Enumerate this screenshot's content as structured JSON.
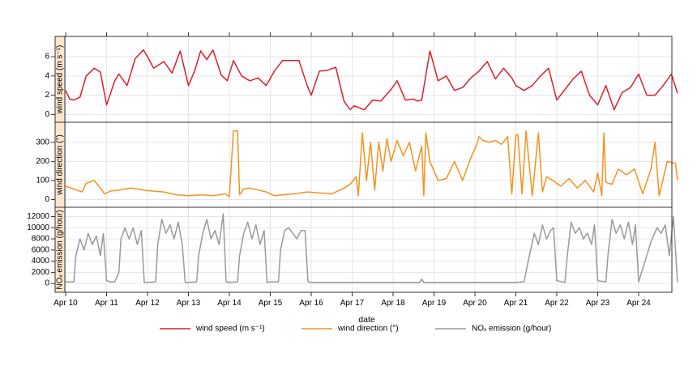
{
  "chart_data": {
    "type": "line",
    "xlabel": "date",
    "x_ticks": [
      "Apr 10",
      "Apr 11",
      "Apr 12",
      "Apr 13",
      "Apr 14",
      "Apr 15",
      "Apr 16",
      "Apr 17",
      "Apr 18",
      "Apr 19",
      "Apr 20",
      "Apr 21",
      "Apr 22",
      "Apr 23",
      "Apr 24"
    ],
    "x_range_days": [
      0,
      14.95
    ],
    "grid": true,
    "legend_position": "bottom",
    "panels": [
      {
        "strip_label": "wind speed (m s⁻¹)",
        "series": "wind speed",
        "color": "#dc1e2d",
        "ylim": [
          -0.3,
          7.6
        ],
        "yticks": [
          0,
          2,
          4,
          6
        ],
        "x": [
          0,
          0.1,
          0.2,
          0.35,
          0.5,
          0.7,
          0.85,
          1.0,
          1.2,
          1.3,
          1.5,
          1.7,
          1.9,
          2.0,
          2.15,
          2.4,
          2.6,
          2.8,
          3.0,
          3.15,
          3.3,
          3.45,
          3.6,
          3.8,
          3.95,
          4.1,
          4.3,
          4.5,
          4.7,
          4.9,
          5.1,
          5.3,
          5.5,
          5.7,
          5.9,
          6.0,
          6.2,
          6.4,
          6.6,
          6.8,
          6.95,
          7.05,
          7.3,
          7.5,
          7.7,
          7.95,
          8.1,
          8.3,
          8.5,
          8.6,
          8.7,
          8.9,
          9.1,
          9.3,
          9.5,
          9.7,
          9.9,
          10.1,
          10.3,
          10.5,
          10.7,
          10.9,
          11.0,
          11.2,
          11.4,
          11.6,
          11.8,
          12.0,
          12.2,
          12.4,
          12.6,
          12.8,
          13.0,
          13.2,
          13.4,
          13.6,
          13.8,
          14.0,
          14.2,
          14.4,
          14.6,
          14.8,
          14.95
        ],
        "values": [
          2.5,
          1.6,
          1.5,
          1.8,
          4.0,
          4.8,
          4.4,
          1.0,
          3.5,
          4.2,
          3.0,
          5.8,
          6.7,
          6.0,
          4.8,
          5.5,
          4.3,
          6.6,
          3.0,
          4.5,
          6.6,
          5.7,
          6.7,
          4.1,
          3.5,
          5.6,
          4.0,
          3.5,
          3.8,
          3.0,
          4.5,
          5.6,
          5.6,
          5.6,
          3.0,
          2.0,
          4.5,
          4.6,
          4.9,
          1.4,
          0.5,
          0.9,
          0.5,
          1.5,
          1.4,
          2.6,
          3.5,
          1.5,
          1.6,
          1.4,
          1.5,
          6.6,
          3.5,
          4.0,
          2.5,
          2.8,
          3.8,
          4.5,
          5.5,
          3.7,
          4.8,
          3.8,
          3.0,
          2.5,
          3.0,
          4.0,
          4.8,
          1.5,
          2.6,
          3.7,
          4.5,
          2.0,
          1.0,
          3.0,
          0.5,
          2.3,
          2.8,
          4.2,
          2.0,
          2.0,
          3.0,
          4.2,
          2.2
        ]
      },
      {
        "strip_label": "wind direction (°)",
        "series": "wind direction",
        "color": "#f5921e",
        "ylim": [
          -15,
          380
        ],
        "yticks": [
          0,
          100,
          200,
          300
        ],
        "x": [
          0,
          0.2,
          0.4,
          0.5,
          0.7,
          0.85,
          0.95,
          1.1,
          1.3,
          1.6,
          1.9,
          2.1,
          2.4,
          2.7,
          3.0,
          3.3,
          3.6,
          3.9,
          4.0,
          4.1,
          4.2,
          4.25,
          4.35,
          4.5,
          4.7,
          4.9,
          5.1,
          5.3,
          5.6,
          5.9,
          6.2,
          6.5,
          6.8,
          6.95,
          7.1,
          7.15,
          7.25,
          7.35,
          7.45,
          7.55,
          7.65,
          7.75,
          7.85,
          7.95,
          8.1,
          8.25,
          8.4,
          8.55,
          8.7,
          8.75,
          8.8,
          8.9,
          9.1,
          9.3,
          9.5,
          9.7,
          9.9,
          10.05,
          10.1,
          10.2,
          10.35,
          10.5,
          10.65,
          10.8,
          10.9,
          11.0,
          11.05,
          11.15,
          11.25,
          11.4,
          11.55,
          11.65,
          11.75,
          11.9,
          12.1,
          12.3,
          12.5,
          12.7,
          12.9,
          13.0,
          13.1,
          13.15,
          13.2,
          13.35,
          13.5,
          13.7,
          13.9,
          14.1,
          14.3,
          14.4,
          14.5,
          14.7,
          14.9,
          14.95
        ],
        "values": [
          70,
          55,
          40,
          85,
          100,
          60,
          30,
          45,
          50,
          60,
          50,
          45,
          40,
          25,
          20,
          25,
          20,
          30,
          15,
          360,
          360,
          25,
          55,
          60,
          50,
          40,
          20,
          25,
          30,
          40,
          35,
          30,
          60,
          80,
          120,
          20,
          350,
          100,
          300,
          50,
          300,
          150,
          320,
          200,
          310,
          230,
          300,
          150,
          280,
          20,
          350,
          200,
          100,
          110,
          200,
          100,
          220,
          290,
          330,
          310,
          300,
          310,
          290,
          330,
          30,
          340,
          340,
          30,
          360,
          20,
          350,
          40,
          120,
          100,
          70,
          110,
          60,
          100,
          40,
          140,
          20,
          350,
          90,
          80,
          160,
          130,
          160,
          30,
          160,
          300,
          20,
          200,
          190,
          100
        ]
      },
      {
        "strip_label": "NOₓ emission (g/hour)",
        "series": "NOx emission",
        "color": "#9a9a9a",
        "ylim": [
          -700,
          12800
        ],
        "yticks": [
          0,
          2000,
          4000,
          6000,
          8000,
          10000,
          12000
        ],
        "x": [
          0,
          0.2,
          0.25,
          0.35,
          0.45,
          0.55,
          0.65,
          0.75,
          0.85,
          0.92,
          1.0,
          1.1,
          1.2,
          1.3,
          1.35,
          1.45,
          1.55,
          1.65,
          1.75,
          1.85,
          1.92,
          2.0,
          2.2,
          2.25,
          2.35,
          2.45,
          2.55,
          2.65,
          2.75,
          2.85,
          2.92,
          3.0,
          3.2,
          3.25,
          3.35,
          3.45,
          3.55,
          3.65,
          3.75,
          3.85,
          3.92,
          4.0,
          4.2,
          4.25,
          4.35,
          4.45,
          4.55,
          4.65,
          4.75,
          4.85,
          4.92,
          5.0,
          5.2,
          5.25,
          5.35,
          5.45,
          5.55,
          5.65,
          5.75,
          5.85,
          5.92,
          6.0,
          6.5,
          7.0,
          7.5,
          8.0,
          8.65,
          8.7,
          8.75,
          9.0,
          9.5,
          10.0,
          10.5,
          11.0,
          11.2,
          11.3,
          11.45,
          11.55,
          11.65,
          11.75,
          11.85,
          11.92,
          12.0,
          12.2,
          12.25,
          12.35,
          12.45,
          12.55,
          12.65,
          12.75,
          12.85,
          12.92,
          13.0,
          13.2,
          13.25,
          13.35,
          13.45,
          13.55,
          13.65,
          13.75,
          13.85,
          13.92,
          14.0,
          14.2,
          14.3,
          14.45,
          14.55,
          14.65,
          14.75,
          14.85,
          14.95
        ],
        "values": [
          300,
          300,
          5000,
          8000,
          6000,
          9000,
          7000,
          8500,
          5000,
          9000,
          500,
          300,
          300,
          2000,
          8000,
          10000,
          8000,
          10000,
          7000,
          9500,
          200,
          200,
          300,
          7000,
          11500,
          9000,
          10500,
          8000,
          11000,
          7000,
          200,
          200,
          300,
          5000,
          9000,
          11500,
          8000,
          9500,
          7000,
          12500,
          300,
          200,
          300,
          5000,
          9000,
          11000,
          8000,
          10500,
          7000,
          9500,
          200,
          300,
          300,
          6000,
          9500,
          10000,
          9000,
          8000,
          9500,
          9500,
          300,
          200,
          200,
          200,
          200,
          200,
          200,
          800,
          200,
          200,
          200,
          200,
          200,
          200,
          300,
          4000,
          9000,
          7000,
          10500,
          8000,
          9500,
          10000,
          500,
          200,
          4500,
          11000,
          9000,
          10000,
          8000,
          9000,
          7000,
          10500,
          500,
          300,
          5000,
          11500,
          9000,
          10500,
          8000,
          11000,
          7000,
          10500,
          300,
          5000,
          7500,
          10000,
          9000,
          10500,
          5000,
          12000,
          200
        ]
      }
    ],
    "legend": [
      {
        "label": "wind speed (m s⁻¹)",
        "color": "#dc1e2d"
      },
      {
        "label": "wind direction (°)",
        "color": "#f5921e"
      },
      {
        "label": "NOₓ emission (g/hour)",
        "color": "#9a9a9a"
      }
    ]
  }
}
